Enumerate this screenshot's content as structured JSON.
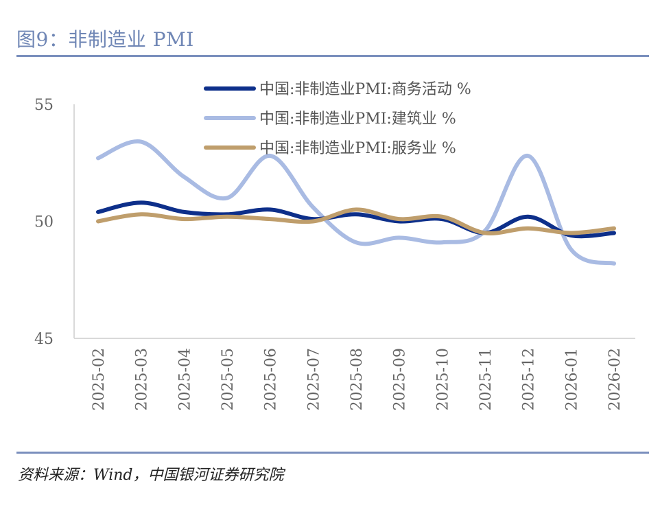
{
  "title": "图9：非制造业 PMI",
  "source": "资料来源：Wind，中国银河证券研究院",
  "chart_data": {
    "type": "line",
    "title": "图9：非制造业 PMI",
    "xlabel": "",
    "ylabel": "",
    "ylim": [
      45,
      55
    ],
    "yticks": [
      45,
      50,
      55
    ],
    "grid": false,
    "legend_position": "top-right",
    "categories": [
      "2025-02",
      "2025-03",
      "2025-04",
      "2025-05",
      "2025-06",
      "2025-07",
      "2025-08",
      "2025-09",
      "2025-10",
      "2025-11",
      "2025-12",
      "2026-01",
      "2026-02"
    ],
    "series": [
      {
        "name": "中国:非制造业PMI:商务活动 %",
        "color": "#0d2f8a",
        "values": [
          50.4,
          50.8,
          50.4,
          50.3,
          50.5,
          50.1,
          50.3,
          50.0,
          50.1,
          49.5,
          50.2,
          49.4,
          49.5
        ]
      },
      {
        "name": "中国:非制造业PMI:建筑业 %",
        "color": "#a9bbe3",
        "values": [
          52.7,
          53.4,
          51.9,
          51.0,
          52.8,
          50.6,
          49.1,
          49.3,
          49.1,
          49.6,
          52.8,
          48.8,
          48.2
        ]
      },
      {
        "name": "中国:非制造业PMI:服务业 %",
        "color": "#bf9e6c",
        "values": [
          50.0,
          50.3,
          50.1,
          50.2,
          50.1,
          50.0,
          50.5,
          50.1,
          50.2,
          49.5,
          49.7,
          49.5,
          49.7
        ]
      }
    ]
  }
}
